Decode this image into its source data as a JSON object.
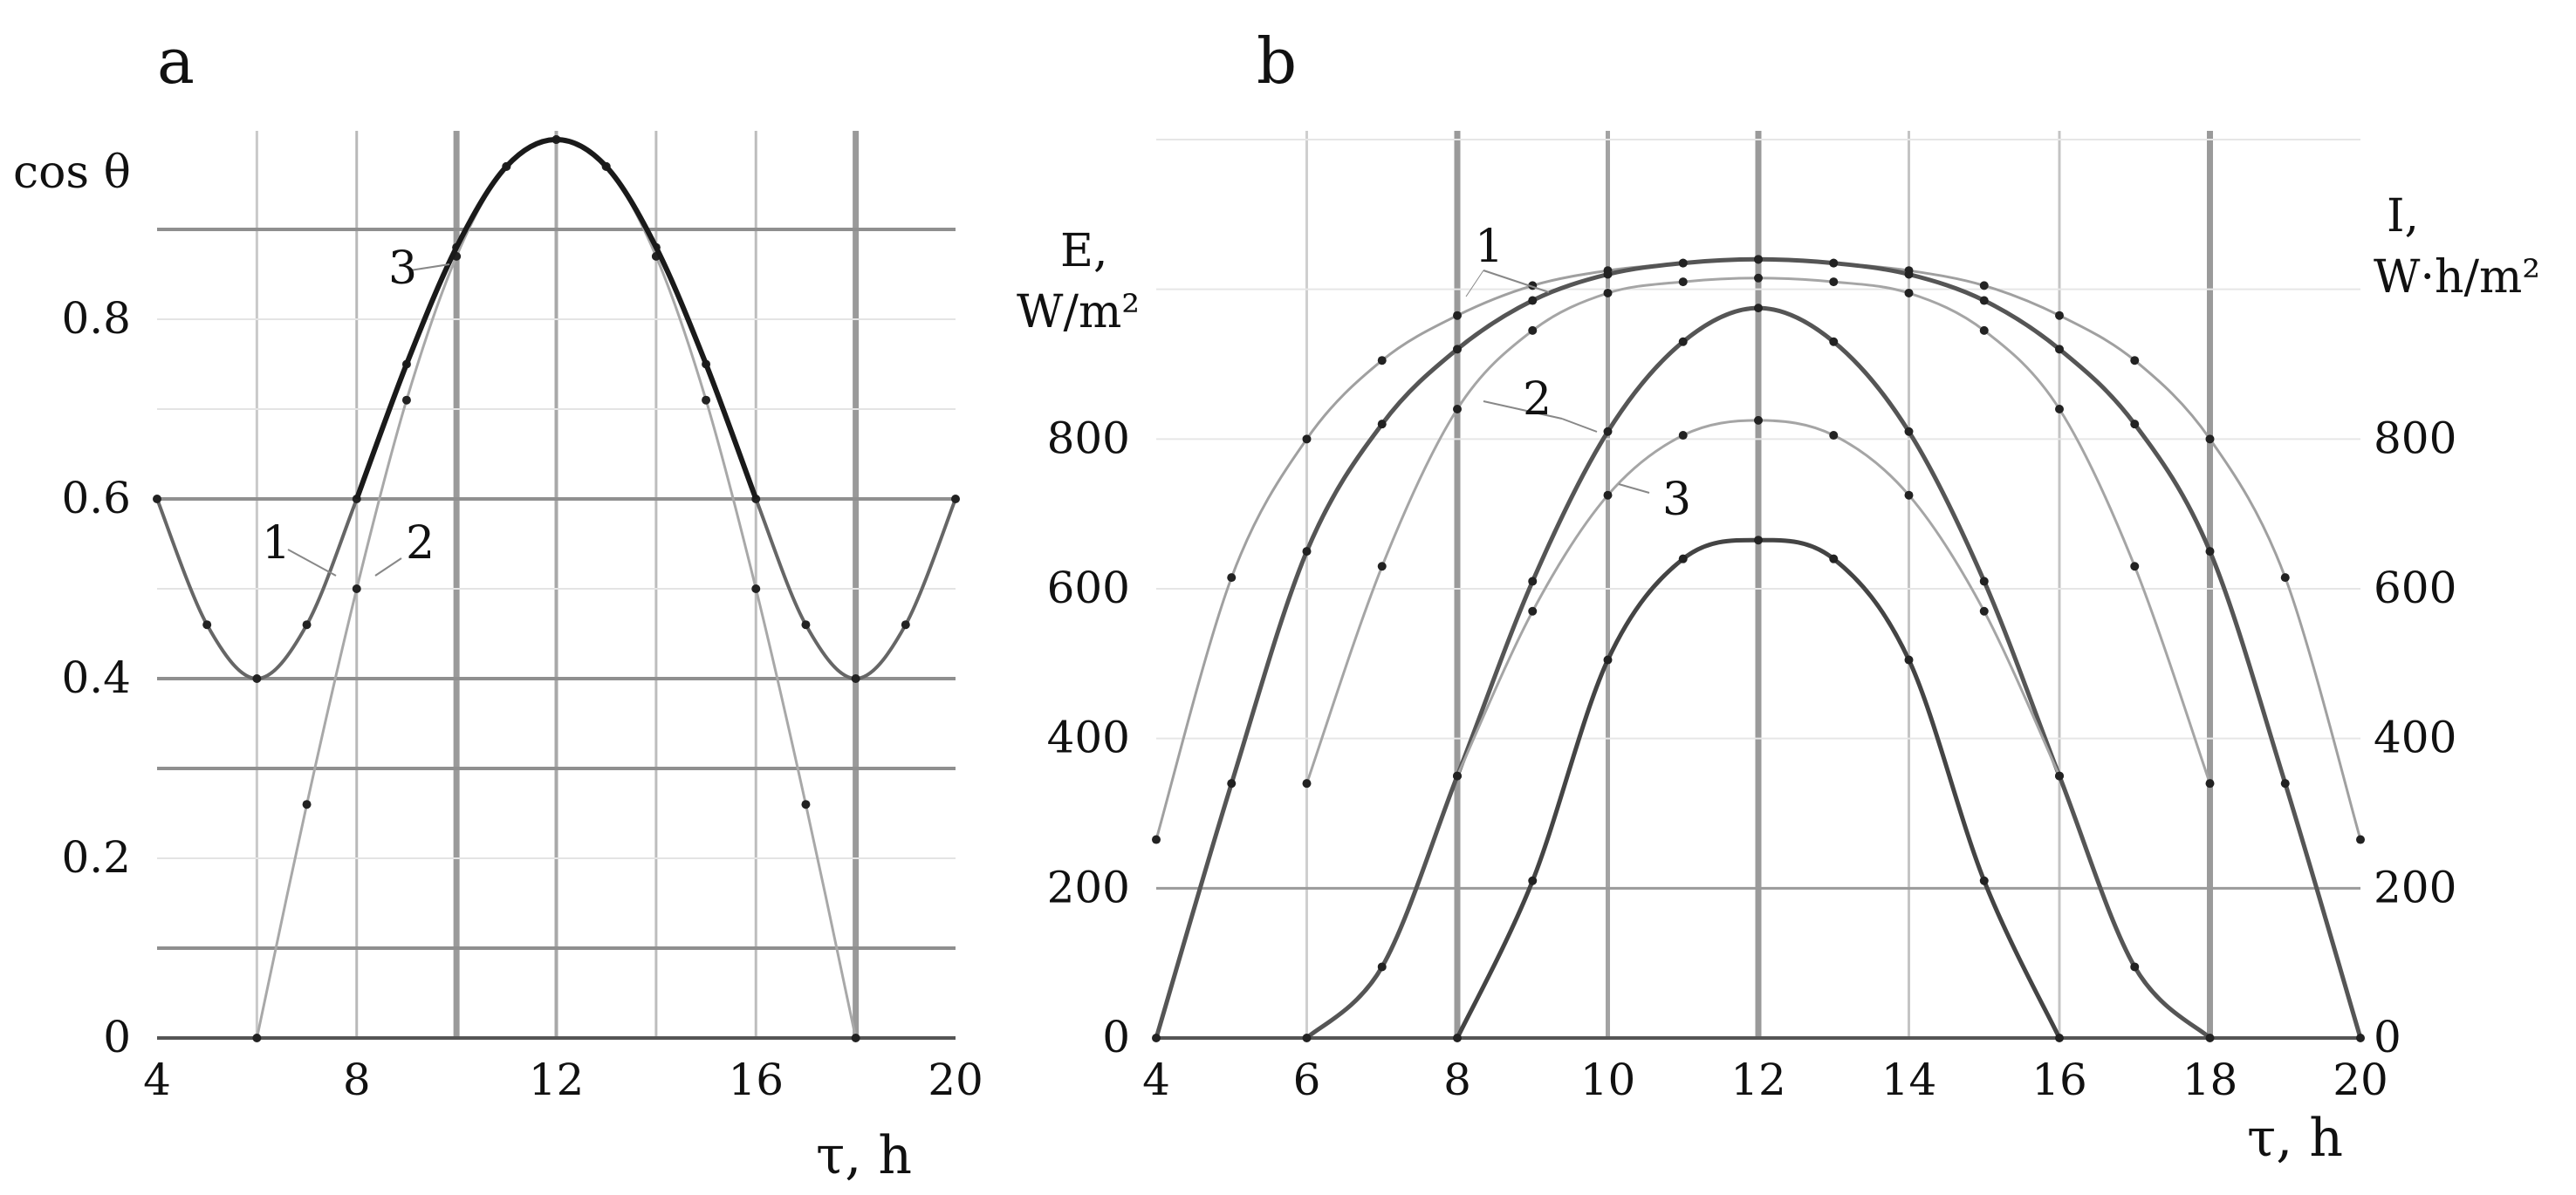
{
  "chart_data": [
    {
      "panel": "a",
      "type": "line",
      "ylabel": "cos θ",
      "xlabel": "τ, h",
      "xlim": [
        4,
        20
      ],
      "ylim": [
        0,
        1.0
      ],
      "x_ticks": [
        "4",
        "8",
        "12",
        "16",
        "20"
      ],
      "y_ticks": [
        "0",
        "0.2",
        "0.4",
        "0.6",
        "0.8"
      ],
      "grid": true,
      "series": [
        {
          "name": "1",
          "x": [
            4,
            5,
            6,
            7,
            8,
            9,
            10,
            11,
            12,
            13,
            14,
            15,
            16,
            17,
            18,
            19,
            20
          ],
          "y": [
            0.6,
            0.46,
            0.4,
            0.46,
            0.6,
            0.75,
            0.88,
            0.97,
            1.0,
            0.97,
            0.88,
            0.75,
            0.6,
            0.46,
            0.4,
            0.46,
            0.6
          ]
        },
        {
          "name": "2",
          "x": [
            6,
            7,
            8,
            9,
            10,
            11,
            12,
            13,
            14,
            15,
            16,
            17,
            18
          ],
          "y": [
            0,
            0.26,
            0.5,
            0.71,
            0.87,
            0.97,
            1.0,
            0.97,
            0.87,
            0.71,
            0.5,
            0.26,
            0
          ]
        },
        {
          "name": "3",
          "x": [
            8,
            9,
            10,
            11,
            12,
            13,
            14,
            15,
            16
          ],
          "y": [
            0.6,
            0.75,
            0.88,
            0.97,
            1.0,
            0.97,
            0.88,
            0.75,
            0.6
          ]
        }
      ]
    },
    {
      "panel": "b",
      "type": "line",
      "ylabel_left": [
        "E,",
        "W/m²"
      ],
      "ylabel_right": [
        "I,",
        "W·h/m²"
      ],
      "xlabel": "τ, h",
      "xlim": [
        4,
        20
      ],
      "ylim": [
        0,
        1200
      ],
      "x_ticks": [
        "4",
        "6",
        "8",
        "10",
        "12",
        "14",
        "16",
        "18",
        "20"
      ],
      "y_ticks_left": [
        "0",
        "200",
        "400",
        "600",
        "800"
      ],
      "y_ticks_right": [
        "0",
        "200",
        "400",
        "600",
        "800"
      ],
      "grid": true,
      "series": [
        {
          "name": "1",
          "x": [
            4,
            5,
            6,
            7,
            8,
            9,
            10,
            11,
            12,
            13,
            14,
            15,
            16,
            17,
            18,
            19,
            20
          ],
          "y": [
            265,
            615,
            800,
            905,
            965,
            1005,
            1025,
            1035,
            1040,
            1035,
            1025,
            1005,
            965,
            905,
            800,
            615,
            265
          ]
        },
        {
          "name": "",
          "x": [
            4,
            5,
            6,
            7,
            8,
            9,
            10,
            11,
            12,
            13,
            14,
            15,
            16,
            17,
            18,
            19,
            20
          ],
          "y": [
            0,
            340,
            650,
            820,
            920,
            985,
            1020,
            1035,
            1040,
            1035,
            1020,
            985,
            920,
            820,
            650,
            340,
            0
          ]
        },
        {
          "name": "2",
          "x": [
            6,
            7,
            8,
            9,
            10,
            11,
            12,
            13,
            14,
            15,
            16,
            17,
            18
          ],
          "y": [
            340,
            630,
            840,
            945,
            995,
            1010,
            1015,
            1010,
            995,
            945,
            840,
            630,
            340
          ]
        },
        {
          "name": "",
          "x": [
            6,
            7,
            8,
            9,
            10,
            11,
            12,
            13,
            14,
            15,
            16,
            17,
            18
          ],
          "y": [
            0,
            95,
            350,
            610,
            810,
            930,
            975,
            930,
            810,
            610,
            350,
            95,
            0
          ]
        },
        {
          "name": "",
          "x": [
            8,
            9,
            10,
            11,
            12,
            13,
            14,
            15,
            16
          ],
          "y": [
            350,
            570,
            725,
            805,
            825,
            805,
            725,
            570,
            350
          ]
        },
        {
          "name": "3",
          "x": [
            8,
            9,
            10,
            11,
            12,
            13,
            14,
            15,
            16
          ],
          "y": [
            0,
            210,
            505,
            640,
            665,
            640,
            505,
            210,
            0
          ]
        }
      ]
    }
  ]
}
